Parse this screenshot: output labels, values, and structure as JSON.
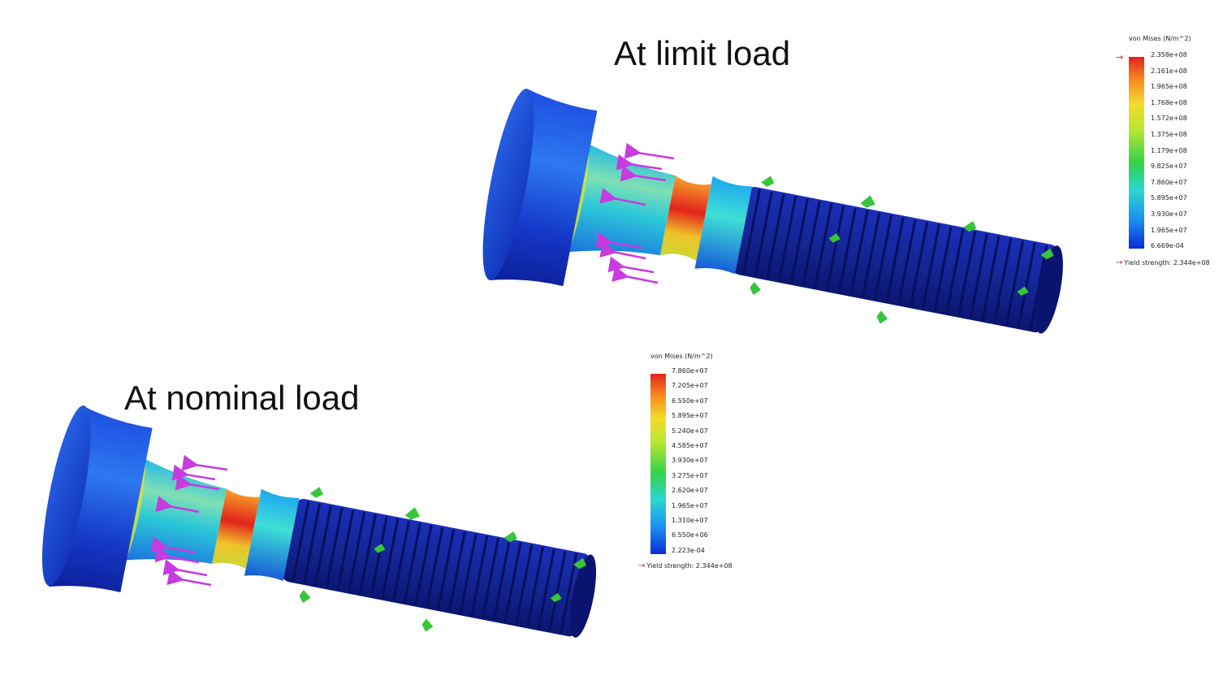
{
  "titles": {
    "limit": "At limit load",
    "nominal": "At nominal load"
  },
  "colors": {
    "scale": [
      "#0a2bd6",
      "#1b8ff2",
      "#2bd6d0",
      "#34d34a",
      "#b6e632",
      "#f3dd2a",
      "#f78a21",
      "#e3231c"
    ],
    "arrow": "#c73be0",
    "fixture": "#37c63a",
    "thread": "#13249b",
    "yield_marker": "#e21b1b"
  },
  "legend_limit": {
    "title": "von Mises (N/m^2)",
    "ticks": [
      "2.358e+08",
      "2.161e+08",
      "1.965e+08",
      "1.768e+08",
      "1.572e+08",
      "1.375e+08",
      "1.179e+08",
      "9.825e+07",
      "7.860e+07",
      "5.895e+07",
      "3.930e+07",
      "1.965e+07",
      "6.669e-04"
    ],
    "yield": "Yield strength: 2.344e+08"
  },
  "legend_nominal": {
    "title": "von Mises (N/m^2)",
    "ticks": [
      "7.860e+07",
      "7.205e+07",
      "6.550e+07",
      "5.895e+07",
      "5.240e+07",
      "4.585e+07",
      "3.930e+07",
      "3.275e+07",
      "2.620e+07",
      "1.965e+07",
      "1.310e+07",
      "6.550e+06",
      "2.223e-04"
    ],
    "yield": "Yield strength: 2.344e+08"
  }
}
